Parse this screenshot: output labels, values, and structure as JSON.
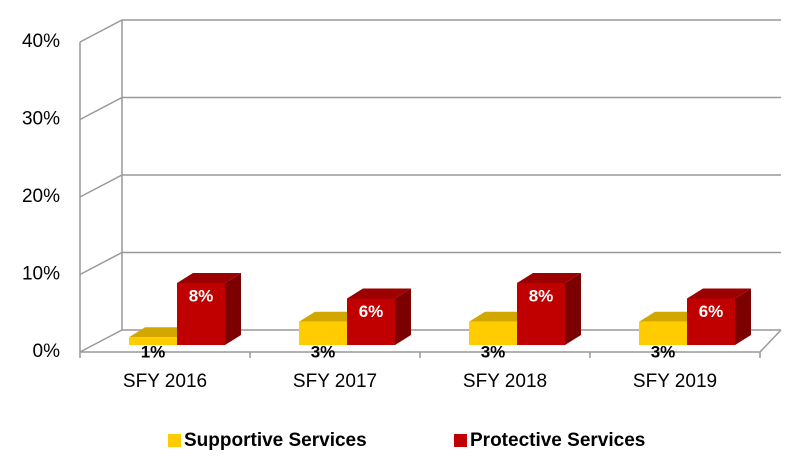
{
  "chart_data": {
    "type": "bar3d",
    "categories": [
      "SFY 2016",
      "SFY 2017",
      "SFY 2018",
      "SFY 2019"
    ],
    "series": [
      {
        "name": "Supportive Services",
        "color": "#FFCC00",
        "values": [
          1,
          3,
          3,
          3
        ],
        "value_labels": [
          "1%",
          "3%",
          "3%",
          "3%"
        ]
      },
      {
        "name": "Protective Services",
        "color": "#C00000",
        "values": [
          8,
          6,
          8,
          6
        ],
        "value_labels": [
          "8%",
          "6%",
          "8%",
          "6%"
        ]
      }
    ],
    "ylim": [
      0,
      40
    ],
    "yticks": [
      {
        "value": 0,
        "label": "0%"
      },
      {
        "value": 10,
        "label": "10%"
      },
      {
        "value": 20,
        "label": "20%"
      },
      {
        "value": 30,
        "label": "30%"
      },
      {
        "value": 40,
        "label": "40%"
      }
    ],
    "grid": true,
    "legend": "bottom"
  }
}
